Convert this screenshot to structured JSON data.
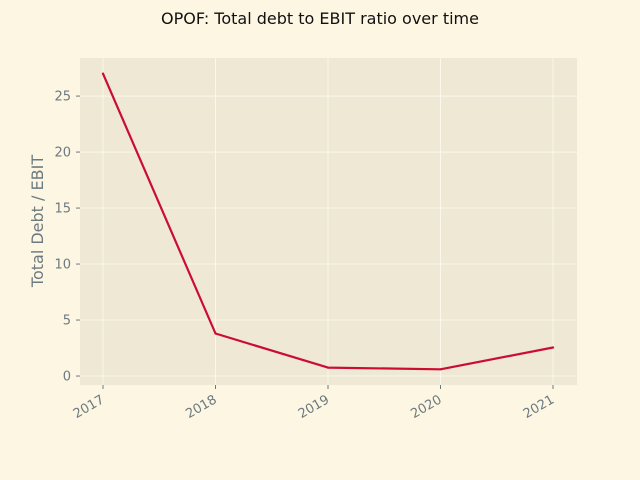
{
  "chart_data": {
    "type": "line",
    "title": "OPOF: Total debt to EBIT ratio over time",
    "xlabel": "",
    "ylabel": "Total Debt / EBIT",
    "x": [
      "2017",
      "2018",
      "2019",
      "2020",
      "2021"
    ],
    "series": [
      {
        "values": [
          27.0,
          3.8,
          0.75,
          0.6,
          2.55
        ]
      }
    ],
    "ylim": [
      -0.8,
      28.4
    ],
    "yticks": [
      0,
      5,
      10,
      15,
      20,
      25
    ],
    "grid": true,
    "legend": "none"
  },
  "colors": {
    "page_background": "#fdf6e3",
    "plot_background": "#eee8d5",
    "grid": "#fbf7ec",
    "line": "#cb0d34",
    "tick_text": "#6c7a80"
  }
}
